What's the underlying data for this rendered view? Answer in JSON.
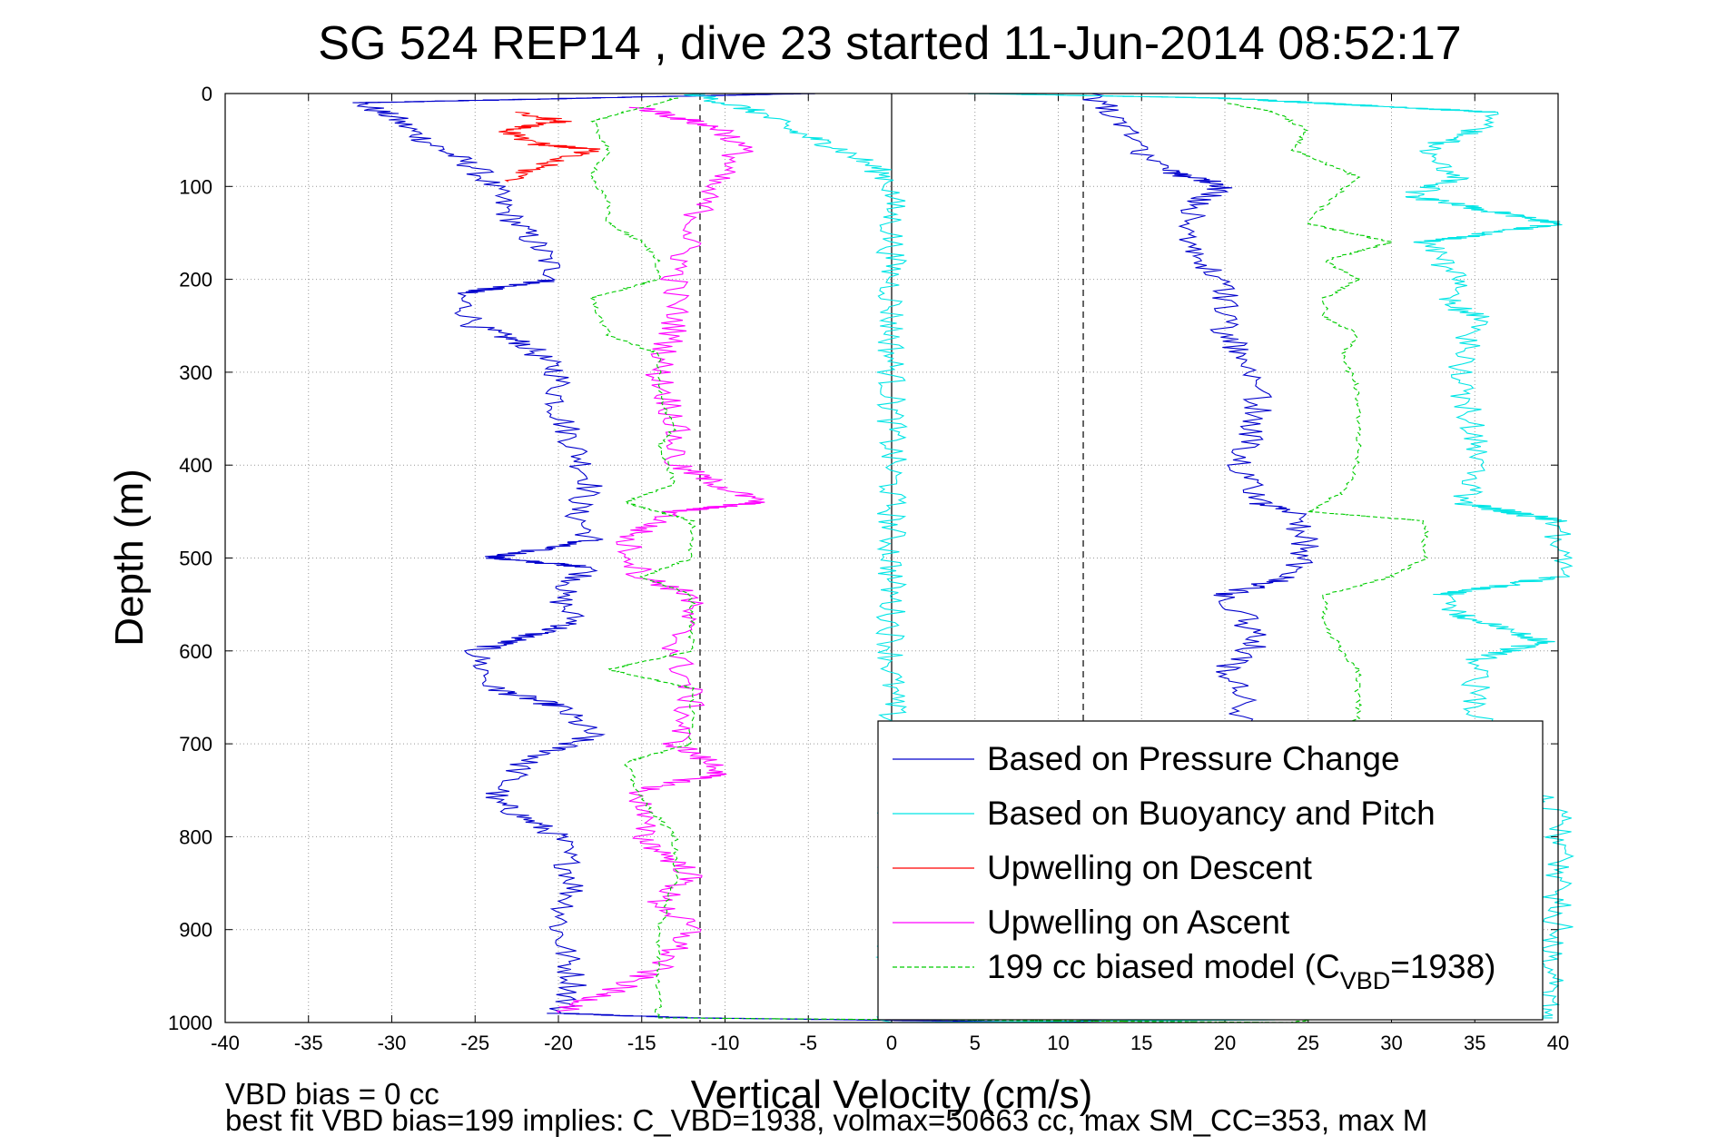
{
  "chart_data": {
    "type": "line",
    "title": "SG 524   REP14  , dive 23 started 11-Jun-2014 08:52:17",
    "xlabel": "Vertical Velocity (cm/s)",
    "ylabel": "Depth (m)",
    "xlim": [
      -40,
      40
    ],
    "ylim": [
      0,
      1000
    ],
    "y_reversed": true,
    "grid": true,
    "x_ticks": [
      -40,
      -35,
      -30,
      -25,
      -20,
      -15,
      -10,
      -5,
      0,
      5,
      10,
      15,
      20,
      25,
      30,
      35,
      40
    ],
    "y_ticks": [
      0,
      100,
      200,
      300,
      400,
      500,
      600,
      700,
      800,
      900,
      1000
    ],
    "vertical_lines": [
      {
        "x": 0,
        "style": "solid",
        "color": "#000000"
      },
      {
        "x": -11.5,
        "style": "dashed",
        "color": "#000000"
      },
      {
        "x": 11.5,
        "style": "dashed",
        "color": "#000000"
      }
    ],
    "legend_position": "bottom-right",
    "legend": [
      {
        "label": "Based on Pressure Change",
        "color": "#0000cc",
        "dash": false
      },
      {
        "label": "Based on Buoyancy and Pitch",
        "color": "#00e5e5",
        "dash": false
      },
      {
        "label": "Upwelling on Descent",
        "color": "#ff0000",
        "dash": false
      },
      {
        "label": "Upwelling on Ascent",
        "color": "#ff00ff",
        "dash": false
      },
      {
        "label_main": "199 cc biased model (C",
        "label_sub": "VBD",
        "label_tail": "=1938)",
        "color": "#00cc00",
        "dash": true
      }
    ],
    "series": [
      {
        "name": "Based on Pressure Change",
        "color": "#0000cc",
        "dash": false,
        "points": [
          [
            -5,
            0
          ],
          [
            -32,
            10
          ],
          [
            -30,
            25
          ],
          [
            -28,
            50
          ],
          [
            -25,
            80
          ],
          [
            -24,
            100
          ],
          [
            -23,
            130
          ],
          [
            -21,
            170
          ],
          [
            -20,
            200
          ],
          [
            -26,
            215
          ],
          [
            -25,
            250
          ],
          [
            -22,
            270
          ],
          [
            -20,
            300
          ],
          [
            -20,
            340
          ],
          [
            -19,
            380
          ],
          [
            -18,
            420
          ],
          [
            -19,
            450
          ],
          [
            -18,
            480
          ],
          [
            -24,
            500
          ],
          [
            -18,
            510
          ],
          [
            -20,
            540
          ],
          [
            -19,
            570
          ],
          [
            -25,
            600
          ],
          [
            -24,
            640
          ],
          [
            -20,
            660
          ],
          [
            -18,
            690
          ],
          [
            -22,
            720
          ],
          [
            -24,
            760
          ],
          [
            -20,
            800
          ],
          [
            -19,
            850
          ],
          [
            -20,
            900
          ],
          [
            -19,
            960
          ],
          [
            -20,
            990
          ],
          [
            -12,
            995
          ],
          [
            11,
            1000
          ],
          [
            18,
            985
          ],
          [
            19,
            950
          ],
          [
            20,
            900
          ],
          [
            21,
            800
          ],
          [
            21,
            700
          ],
          [
            21,
            650
          ],
          [
            20,
            620
          ],
          [
            22,
            590
          ],
          [
            21,
            560
          ],
          [
            20,
            540
          ],
          [
            24,
            520
          ],
          [
            25,
            490
          ],
          [
            24,
            450
          ],
          [
            22,
            440
          ],
          [
            21,
            400
          ],
          [
            22,
            350
          ],
          [
            22,
            300
          ],
          [
            20,
            260
          ],
          [
            20,
            220
          ],
          [
            19,
            190
          ],
          [
            18,
            160
          ],
          [
            18,
            120
          ],
          [
            20,
            100
          ],
          [
            16,
            80
          ],
          [
            14,
            40
          ],
          [
            13,
            20
          ],
          [
            12,
            0
          ]
        ]
      },
      {
        "name": "Based on Buoyancy and Pitch",
        "color": "#00e5e5",
        "dash": false,
        "points": [
          [
            -12,
            0
          ],
          [
            -8,
            20
          ],
          [
            -6,
            40
          ],
          [
            -3,
            60
          ],
          [
            -1,
            80
          ],
          [
            0,
            95
          ],
          [
            0,
            1000
          ],
          [
            39,
            995
          ],
          [
            40,
            900
          ],
          [
            40,
            780
          ],
          [
            38,
            740
          ],
          [
            36,
            700
          ],
          [
            35,
            660
          ],
          [
            35,
            610
          ],
          [
            39,
            590
          ],
          [
            34,
            560
          ],
          [
            33,
            540
          ],
          [
            40,
            520
          ],
          [
            40,
            500
          ],
          [
            40,
            460
          ],
          [
            34,
            440
          ],
          [
            35,
            420
          ],
          [
            35,
            380
          ],
          [
            34,
            300
          ],
          [
            35,
            240
          ],
          [
            33,
            220
          ],
          [
            34,
            200
          ],
          [
            32,
            160
          ],
          [
            40,
            140
          ],
          [
            31,
            110
          ],
          [
            34,
            90
          ],
          [
            32,
            60
          ],
          [
            35,
            40
          ],
          [
            36,
            20
          ],
          [
            20,
            5
          ],
          [
            5,
            0
          ]
        ]
      },
      {
        "name": "Upwelling on Descent",
        "color": "#ff0000",
        "dash": false,
        "points": [
          [
            -22,
            20
          ],
          [
            -20,
            30
          ],
          [
            -23,
            40
          ],
          [
            -21,
            55
          ],
          [
            -18,
            60
          ],
          [
            -20,
            70
          ],
          [
            -22,
            85
          ],
          [
            -23,
            95
          ]
        ]
      },
      {
        "name": "Upwelling on Ascent",
        "color": "#ff00ff",
        "dash": false,
        "points": [
          [
            -15,
            15
          ],
          [
            -10,
            40
          ],
          [
            -9,
            60
          ],
          [
            -11,
            100
          ],
          [
            -12,
            150
          ],
          [
            -13,
            200
          ],
          [
            -13,
            250
          ],
          [
            -14,
            300
          ],
          [
            -13,
            350
          ],
          [
            -13,
            400
          ],
          [
            -8,
            440
          ],
          [
            -13,
            450
          ],
          [
            -16,
            480
          ],
          [
            -15,
            520
          ],
          [
            -12,
            540
          ],
          [
            -13,
            600
          ],
          [
            -12,
            650
          ],
          [
            -13,
            700
          ],
          [
            -10,
            730
          ],
          [
            -15,
            750
          ],
          [
            -15,
            800
          ],
          [
            -12,
            840
          ],
          [
            -14,
            870
          ],
          [
            -12,
            900
          ],
          [
            -14,
            940
          ],
          [
            -16,
            960
          ],
          [
            -20,
            990
          ]
        ]
      },
      {
        "name": "199 cc biased model (CVBD=1938)",
        "color": "#00cc00",
        "dash": true,
        "points": [
          [
            -13,
            5
          ],
          [
            -18,
            30
          ],
          [
            -17,
            60
          ],
          [
            -18,
            90
          ],
          [
            -17,
            120
          ],
          [
            -17,
            140
          ],
          [
            -15,
            160
          ],
          [
            -14,
            180
          ],
          [
            -14,
            200
          ],
          [
            -18,
            220
          ],
          [
            -17,
            260
          ],
          [
            -14,
            280
          ],
          [
            -14,
            320
          ],
          [
            -13,
            360
          ],
          [
            -14,
            380
          ],
          [
            -13,
            420
          ],
          [
            -16,
            440
          ],
          [
            -12,
            460
          ],
          [
            -12,
            500
          ],
          [
            -15,
            520
          ],
          [
            -12,
            540
          ],
          [
            -12,
            600
          ],
          [
            -17,
            620
          ],
          [
            -12,
            640
          ],
          [
            -12,
            700
          ],
          [
            -16,
            720
          ],
          [
            -15,
            760
          ],
          [
            -13,
            800
          ],
          [
            -13,
            850
          ],
          [
            -14,
            900
          ],
          [
            -14,
            950
          ],
          [
            -14,
            995
          ],
          [
            24,
            1000
          ],
          [
            26,
            995
          ],
          [
            27,
            950
          ],
          [
            27,
            850
          ],
          [
            27,
            700
          ],
          [
            28,
            670
          ],
          [
            28,
            620
          ],
          [
            27,
            600
          ],
          [
            26,
            570
          ],
          [
            26,
            540
          ],
          [
            30,
            520
          ],
          [
            32,
            500
          ],
          [
            32,
            460
          ],
          [
            25,
            450
          ],
          [
            27,
            430
          ],
          [
            28,
            400
          ],
          [
            28,
            320
          ],
          [
            27,
            280
          ],
          [
            28,
            260
          ],
          [
            26,
            240
          ],
          [
            26,
            220
          ],
          [
            28,
            200
          ],
          [
            26,
            180
          ],
          [
            30,
            160
          ],
          [
            25,
            140
          ],
          [
            26,
            120
          ],
          [
            28,
            90
          ],
          [
            24,
            60
          ],
          [
            25,
            40
          ],
          [
            23,
            20
          ],
          [
            20,
            10
          ]
        ]
      }
    ]
  },
  "footer": {
    "line1": "VBD bias = 0 cc",
    "line2": "best fit VBD bias=199 implies: C_VBD=1938, volmax=50663 cc, max SM_CC=353, max M"
  }
}
